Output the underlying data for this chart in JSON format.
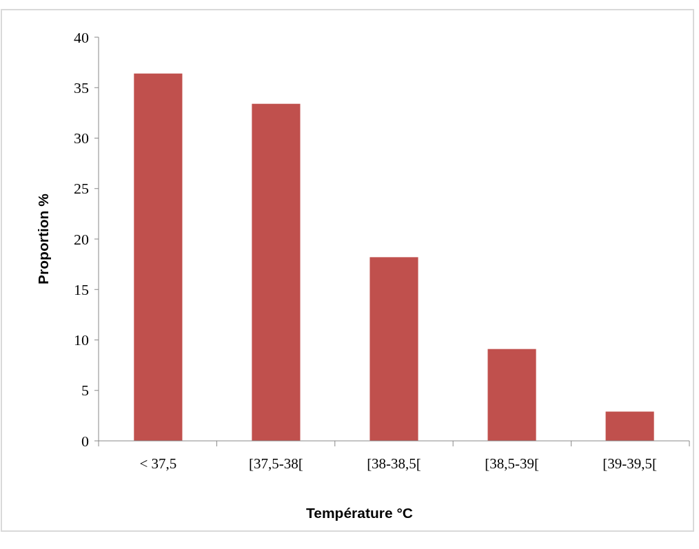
{
  "chart_data": {
    "type": "bar",
    "xlabel": "Température °C",
    "ylabel": "Proportion %",
    "categories": [
      "< 37,5",
      "[37,5-38[",
      "[38-38,5[",
      "[38,5-39[",
      "[39-39,5["
    ],
    "values": [
      36.4,
      33.4,
      18.2,
      9.1,
      2.9
    ],
    "color": "#c0504d",
    "ylim": [
      0,
      40
    ],
    "yticks": [
      0,
      5,
      10,
      15,
      20,
      25,
      30,
      35,
      40
    ],
    "grid": false
  }
}
